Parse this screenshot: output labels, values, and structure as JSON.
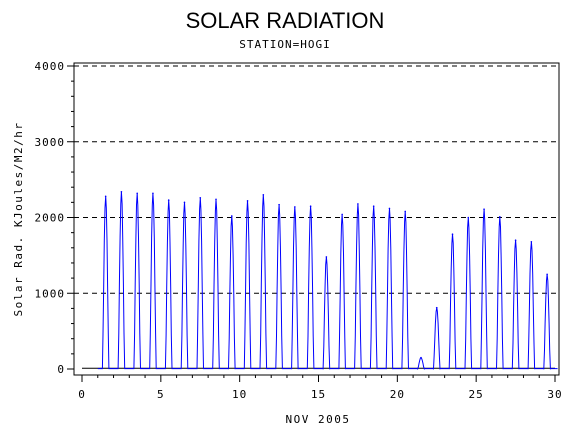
{
  "chart_data": {
    "type": "line",
    "title": "SOLAR RADIATION",
    "subtitle": "STATION=HOGI",
    "xlabel": "NOV 2005",
    "ylabel": "Solar Rad. KJoules/M2/hr",
    "xlim": [
      0,
      30
    ],
    "ylim": [
      0,
      4000
    ],
    "x_ticks": [
      0,
      5,
      10,
      15,
      20,
      25,
      30
    ],
    "y_ticks": [
      0,
      1000,
      2000,
      3000,
      4000
    ],
    "grid": "horizontal dashed at 1000, 2000, 3000, 4000",
    "series": [
      {
        "color": "#0000ff",
        "daily_peaks": [
          {
            "day": 1.5,
            "value": 2280
          },
          {
            "day": 2.5,
            "value": 2340
          },
          {
            "day": 3.5,
            "value": 2320
          },
          {
            "day": 4.5,
            "value": 2320
          },
          {
            "day": 5.5,
            "value": 2230
          },
          {
            "day": 6.5,
            "value": 2200
          },
          {
            "day": 7.5,
            "value": 2260
          },
          {
            "day": 8.5,
            "value": 2240
          },
          {
            "day": 9.5,
            "value": 2020
          },
          {
            "day": 10.5,
            "value": 2220
          },
          {
            "day": 11.5,
            "value": 2300
          },
          {
            "day": 12.5,
            "value": 2170
          },
          {
            "day": 13.5,
            "value": 2140
          },
          {
            "day": 14.5,
            "value": 2150
          },
          {
            "day": 15.5,
            "value": 1480
          },
          {
            "day": 16.5,
            "value": 2040
          },
          {
            "day": 17.5,
            "value": 2180
          },
          {
            "day": 18.5,
            "value": 2150
          },
          {
            "day": 19.5,
            "value": 2120
          },
          {
            "day": 20.5,
            "value": 2080
          },
          {
            "day": 21.5,
            "value": 150
          },
          {
            "day": 22.5,
            "value": 810
          },
          {
            "day": 23.5,
            "value": 1780
          },
          {
            "day": 24.5,
            "value": 2000
          },
          {
            "day": 25.5,
            "value": 2110
          },
          {
            "day": 26.5,
            "value": 2010
          },
          {
            "day": 27.5,
            "value": 1700
          },
          {
            "day": 28.5,
            "value": 1680
          },
          {
            "day": 29.5,
            "value": 1250
          }
        ]
      },
      {
        "color": "#000000",
        "baseline_value": 10
      }
    ]
  }
}
